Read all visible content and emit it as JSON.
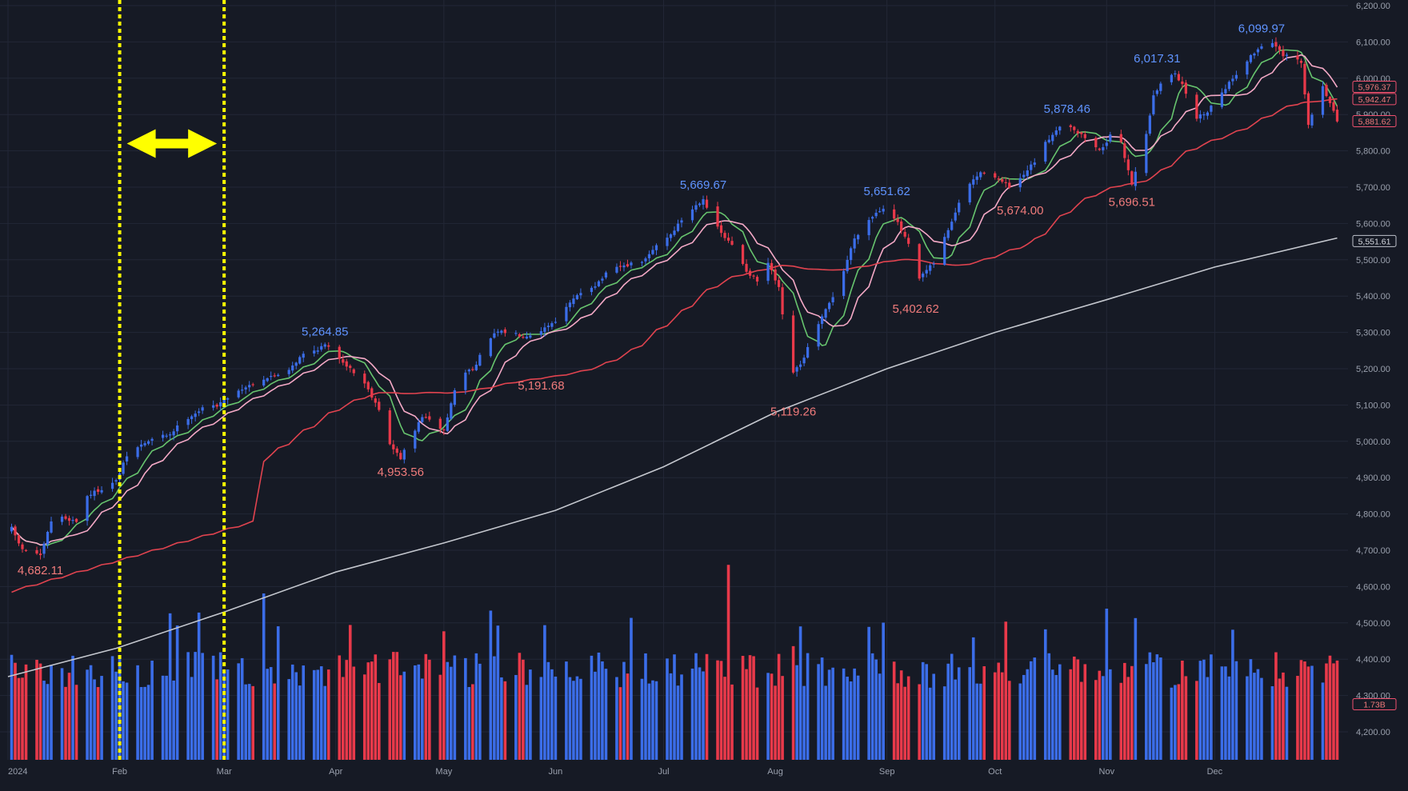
{
  "chart_data": {
    "type": "candlestick",
    "title": "",
    "xlabel": "",
    "ylabel": "",
    "ylim": [
      4108,
      6200
    ],
    "y_ticks": [
      "4,200.00",
      "4,300.00",
      "4,400.00",
      "4,500.00",
      "4,600.00",
      "4,700.00",
      "4,800.00",
      "4,900.00",
      "5,000.00",
      "5,100.00",
      "5,200.00",
      "5,300.00",
      "5,400.00",
      "5,500.00",
      "5,600.00",
      "5,700.00",
      "5,800.00",
      "5,900.00",
      "6,000.00",
      "6,100.00",
      "6,200.00"
    ],
    "x_ticks": [
      {
        "label": "2024",
        "day": 0
      },
      {
        "label": "Feb",
        "day": 31
      },
      {
        "label": "Mar",
        "day": 60
      },
      {
        "label": "Apr",
        "day": 91
      },
      {
        "label": "May",
        "day": 121
      },
      {
        "label": "Jun",
        "day": 152
      },
      {
        "label": "Jul",
        "day": 182
      },
      {
        "label": "Aug",
        "day": 213
      },
      {
        "label": "Sep",
        "day": 244
      },
      {
        "label": "Oct",
        "day": 274
      },
      {
        "label": "Nov",
        "day": 305
      },
      {
        "label": "Dec",
        "day": 335
      }
    ],
    "anchors": [
      [
        1,
        4760
      ],
      [
        4,
        4700
      ],
      [
        7,
        4700
      ],
      [
        9,
        4682
      ],
      [
        12,
        4780
      ],
      [
        15,
        4790
      ],
      [
        19,
        4780
      ],
      [
        22,
        4850
      ],
      [
        26,
        4870
      ],
      [
        30,
        4890
      ],
      [
        33,
        4960
      ],
      [
        37,
        4990
      ],
      [
        41,
        5010
      ],
      [
        45,
        5020
      ],
      [
        49,
        5060
      ],
      [
        54,
        5090
      ],
      [
        58,
        5100
      ],
      [
        62,
        5130
      ],
      [
        66,
        5150
      ],
      [
        70,
        5170
      ],
      [
        74,
        5180
      ],
      [
        78,
        5200
      ],
      [
        82,
        5240
      ],
      [
        85,
        5250
      ],
      [
        88,
        5264.85
      ],
      [
        91,
        5240
      ],
      [
        95,
        5200
      ],
      [
        99,
        5160
      ],
      [
        103,
        5090
      ],
      [
        106,
        4990
      ],
      [
        109,
        4954
      ],
      [
        112,
        5010
      ],
      [
        115,
        5070
      ],
      [
        118,
        5050
      ],
      [
        121,
        5030
      ],
      [
        124,
        5140
      ],
      [
        127,
        5190
      ],
      [
        130,
        5210
      ],
      [
        133,
        5280
      ],
      [
        136,
        5300
      ],
      [
        140,
        5300
      ],
      [
        143,
        5290
      ],
      [
        147,
        5300
      ],
      [
        150,
        5320
      ],
      [
        153,
        5340
      ],
      [
        156,
        5380
      ],
      [
        160,
        5420
      ],
      [
        163,
        5430
      ],
      [
        167,
        5470
      ],
      [
        170,
        5480
      ],
      [
        174,
        5490
      ],
      [
        177,
        5500
      ],
      [
        180,
        5540
      ],
      [
        184,
        5570
      ],
      [
        187,
        5610
      ],
      [
        190,
        5640
      ],
      [
        193,
        5669.67
      ],
      [
        196,
        5600
      ],
      [
        199,
        5560
      ],
      [
        202,
        5530
      ],
      [
        205,
        5470
      ],
      [
        208,
        5440
      ],
      [
        211,
        5490
      ],
      [
        214,
        5420
      ],
      [
        216,
        5270
      ],
      [
        218,
        5190
      ],
      [
        220,
        5210
      ],
      [
        223,
        5280
      ],
      [
        226,
        5340
      ],
      [
        229,
        5400
      ],
      [
        232,
        5470
      ],
      [
        235,
        5560
      ],
      [
        238,
        5600
      ],
      [
        241,
        5630
      ],
      [
        244,
        5651.62
      ],
      [
        247,
        5600
      ],
      [
        250,
        5540
      ],
      [
        252,
        5430
      ],
      [
        254,
        5460
      ],
      [
        257,
        5490
      ],
      [
        260,
        5560
      ],
      [
        263,
        5630
      ],
      [
        266,
        5700
      ],
      [
        269,
        5730
      ],
      [
        272,
        5750
      ],
      [
        275,
        5720
      ],
      [
        278,
        5700
      ],
      [
        281,
        5720
      ],
      [
        285,
        5770
      ],
      [
        288,
        5820
      ],
      [
        291,
        5860
      ],
      [
        294,
        5878.46
      ],
      [
        297,
        5850
      ],
      [
        300,
        5830
      ],
      [
        303,
        5800
      ],
      [
        306,
        5840
      ],
      [
        309,
        5820
      ],
      [
        312,
        5710
      ],
      [
        315,
        5800
      ],
      [
        318,
        5950
      ],
      [
        321,
        6000
      ],
      [
        324,
        6017
      ],
      [
        327,
        5960
      ],
      [
        330,
        5890
      ],
      [
        333,
        5910
      ],
      [
        336,
        5950
      ],
      [
        340,
        6000
      ],
      [
        344,
        6050
      ],
      [
        348,
        6090
      ],
      [
        351,
        6099.97
      ],
      [
        354,
        6060
      ],
      [
        357,
        6060
      ],
      [
        359,
        6040
      ],
      [
        361,
        5870
      ],
      [
        363,
        5930
      ],
      [
        365,
        5980
      ],
      [
        367,
        5930
      ],
      [
        369,
        5881.62
      ]
    ],
    "annotations": [
      {
        "text": "4,682.11",
        "day": 9,
        "price": 4682.11,
        "color": "#f07b7b",
        "position": "below"
      },
      {
        "text": "5,264.85",
        "day": 88,
        "price": 5264.85,
        "color": "#5f93ff",
        "position": "above"
      },
      {
        "text": "4,953.56",
        "day": 109,
        "price": 4953.56,
        "color": "#f07b7b",
        "position": "below"
      },
      {
        "text": "5,191.68",
        "day": 148,
        "price": 5191.68,
        "color": "#f07b7b",
        "position": "below"
      },
      {
        "text": "5,669.67",
        "day": 193,
        "price": 5669.67,
        "color": "#5f93ff",
        "position": "above"
      },
      {
        "text": "5,119.26",
        "day": 218,
        "price": 5119.26,
        "color": "#f07b7b",
        "position": "below"
      },
      {
        "text": "5,651.62",
        "day": 244,
        "price": 5651.62,
        "color": "#5f93ff",
        "position": "above"
      },
      {
        "text": "5,402.62",
        "day": 252,
        "price": 5402.62,
        "color": "#f07b7b",
        "position": "below"
      },
      {
        "text": "5,674.00",
        "day": 281,
        "price": 5674.0,
        "color": "#f07b7b",
        "position": "below"
      },
      {
        "text": "5,878.46",
        "day": 294,
        "price": 5878.46,
        "color": "#5f93ff",
        "position": "above"
      },
      {
        "text": "5,696.51",
        "day": 312,
        "price": 5696.51,
        "color": "#f07b7b",
        "position": "below"
      },
      {
        "text": "6,017.31",
        "day": 319,
        "price": 6017.31,
        "color": "#5f93ff",
        "position": "above"
      },
      {
        "text": "6,099.97",
        "day": 348,
        "price": 6099.97,
        "color": "#5f93ff",
        "position": "above"
      }
    ],
    "price_tags": [
      {
        "text": "5,976.37",
        "price": 5976.37,
        "border": "#f0506e",
        "fill": "#161a25",
        "color": "#f07b7b"
      },
      {
        "text": "5,942.47",
        "price": 5942.47,
        "border": "#f0506e",
        "fill": "#161a25",
        "color": "#f07b7b"
      },
      {
        "text": "5,881.62",
        "price": 5881.62,
        "border": "#f0506e",
        "fill": "#161a25",
        "color": "#f07b7b"
      },
      {
        "text": "5,551.61",
        "price": 5551.61,
        "border": "#bfc3cc",
        "fill": "#161a25",
        "color": "#d8dbe2"
      },
      {
        "text": "1.73B",
        "price": 4276,
        "border": "#f0506e",
        "fill": "#161a25",
        "color": "#f07b7b"
      }
    ],
    "moving_averages": [
      {
        "period": 8,
        "color": "#67c46e"
      },
      {
        "period": 13,
        "color": "#f4a9c6"
      },
      {
        "period": 50,
        "color": "#e0434f"
      },
      {
        "period": 200,
        "color": "#c4c7ce"
      }
    ],
    "ma200": [
      [
        0,
        4352
      ],
      [
        30,
        4430
      ],
      [
        60,
        4530
      ],
      [
        91,
        4640
      ],
      [
        121,
        4720
      ],
      [
        152,
        4810
      ],
      [
        182,
        4930
      ],
      [
        213,
        5080
      ],
      [
        244,
        5200
      ],
      [
        274,
        5300
      ],
      [
        305,
        5390
      ],
      [
        335,
        5480
      ],
      [
        369,
        5560
      ]
    ],
    "markers": {
      "vertical_lines": [
        31,
        60
      ],
      "arrow": {
        "from_day": 33,
        "to_day": 58,
        "price": 5820,
        "color": "#ffff00"
      }
    },
    "colors": {
      "background": "#161a25",
      "up": "#3b6de8",
      "down": "#e8394a",
      "grid": "#222736"
    },
    "grid": true
  }
}
